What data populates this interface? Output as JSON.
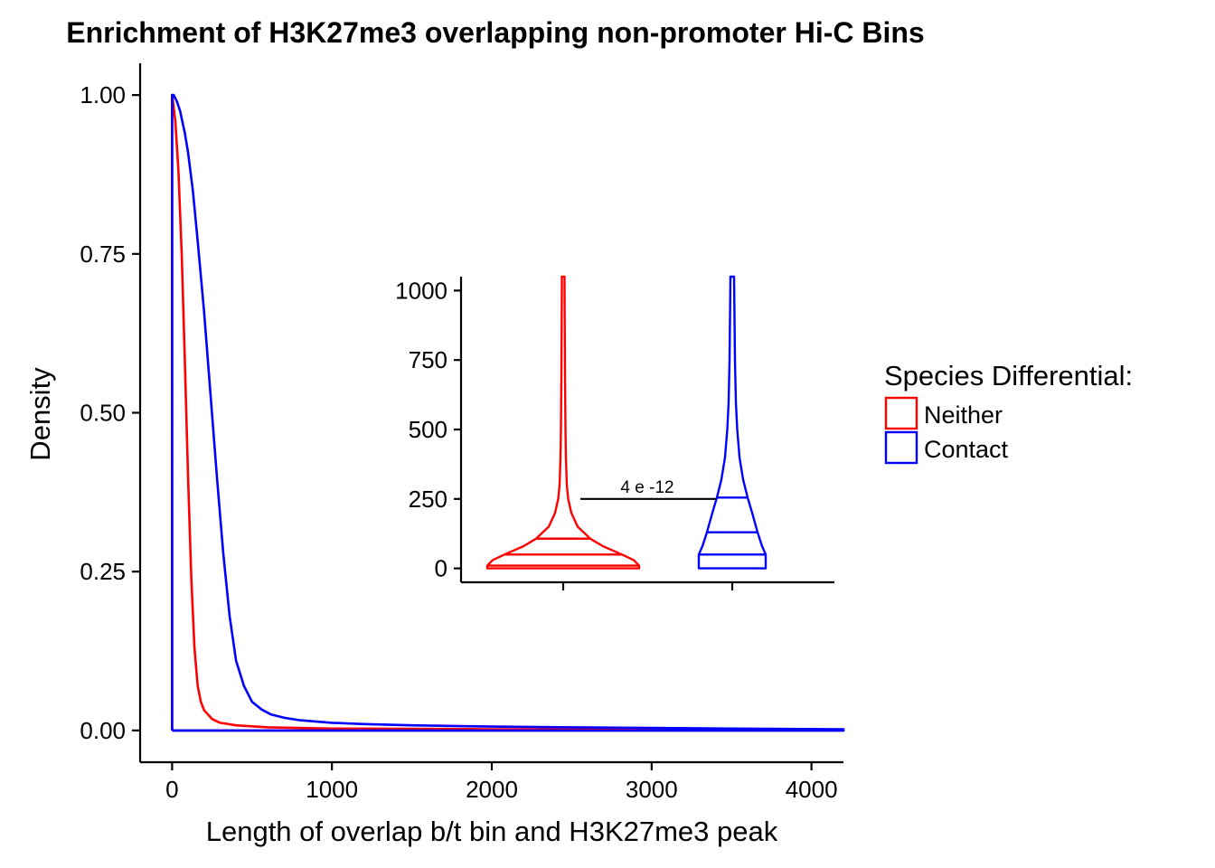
{
  "chart_data": [
    {
      "type": "line",
      "title": "Enrichment of H3K27me3 overlapping non-promoter Hi-C Bins",
      "xlabel": "Length of overlap b/t bin and H3K27me3 peak",
      "ylabel": "Density",
      "xlim": [
        -200,
        4200
      ],
      "ylim": [
        -0.05,
        1.05
      ],
      "x_ticks": [
        0,
        1000,
        2000,
        3000,
        4000
      ],
      "y_ticks": [
        0.0,
        0.25,
        0.5,
        0.75,
        1.0
      ],
      "x_tick_labels": [
        "0",
        "1000",
        "2000",
        "3000",
        "4000"
      ],
      "y_tick_labels": [
        "0.00",
        "0.25",
        "0.50",
        "0.75",
        "1.00"
      ],
      "grid": false,
      "series": [
        {
          "name": "Neither",
          "color": "#FF0000",
          "x": [
            0,
            0,
            20,
            40,
            60,
            80,
            100,
            120,
            140,
            160,
            180,
            200,
            250,
            300,
            400,
            600,
            1000,
            2000,
            3000,
            4200
          ],
          "y": [
            0,
            1.0,
            0.96,
            0.88,
            0.75,
            0.58,
            0.4,
            0.24,
            0.13,
            0.07,
            0.045,
            0.032,
            0.018,
            0.012,
            0.008,
            0.005,
            0.003,
            0.002,
            0.0015,
            0.001
          ]
        },
        {
          "name": "Contact",
          "color": "#0000FF",
          "x": [
            0,
            0,
            10,
            30,
            50,
            80,
            100,
            130,
            160,
            200,
            240,
            280,
            320,
            360,
            400,
            450,
            500,
            560,
            620,
            700,
            800,
            1000,
            1200,
            1500,
            2000,
            2500,
            3000,
            3500,
            4200
          ],
          "y": [
            0,
            1.0,
            1.0,
            0.99,
            0.975,
            0.94,
            0.91,
            0.85,
            0.77,
            0.66,
            0.53,
            0.4,
            0.28,
            0.18,
            0.11,
            0.07,
            0.045,
            0.033,
            0.025,
            0.02,
            0.016,
            0.012,
            0.01,
            0.008,
            0.006,
            0.005,
            0.004,
            0.003,
            0.002
          ]
        }
      ],
      "legend": {
        "title": "Species Differential:",
        "position": "right",
        "entries": [
          {
            "label": "Neither",
            "color": "#FF0000"
          },
          {
            "label": "Contact",
            "color": "#0000FF"
          }
        ]
      }
    },
    {
      "type": "violin",
      "inset": true,
      "ylim": [
        -50,
        1050
      ],
      "y_ticks": [
        0,
        250,
        500,
        750,
        1000
      ],
      "y_tick_labels": [
        "0",
        "250",
        "500",
        "750",
        "1000"
      ],
      "categories": [
        "Neither",
        "Contact"
      ],
      "series": [
        {
          "name": "Neither",
          "color": "#FF0000",
          "quantiles": [
            10,
            50,
            107
          ],
          "max": 1050,
          "min": 0,
          "profile_y": [
            0,
            10,
            30,
            50,
            80,
            107,
            150,
            200,
            250,
            300,
            400,
            500,
            700,
            1000,
            1050
          ],
          "profile_hw": [
            84,
            84,
            78,
            65,
            44,
            30,
            16,
            9,
            5.5,
            4,
            3,
            2.5,
            2,
            1.5,
            1.5
          ]
        },
        {
          "name": "Contact",
          "color": "#0000FF",
          "quantiles": [
            50,
            130,
            255
          ],
          "max": 1050,
          "min": 0,
          "profile_y": [
            0,
            50,
            80,
            130,
            200,
            255,
            320,
            400,
            500,
            600,
            750,
            900,
            1050
          ],
          "profile_hw": [
            37,
            37,
            33,
            28,
            22,
            17,
            12,
            8,
            5.5,
            4,
            3,
            2.5,
            2
          ]
        }
      ],
      "annotation": {
        "label": "4 e -12",
        "y": 250
      }
    }
  ]
}
